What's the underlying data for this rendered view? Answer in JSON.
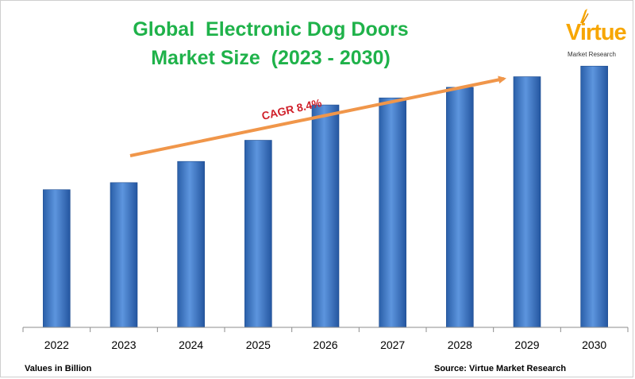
{
  "header": {
    "title_line_1": "Global  Electronic Dog Doors",
    "title_line_2": "Market Size  (2023 - 2030)"
  },
  "logo": {
    "brand": "Virtue",
    "tagline": "Market Research"
  },
  "footer": {
    "units_note": "Values in Billion",
    "source_note": "Source: Virtue Market Research"
  },
  "annotation": {
    "cagr_label": "CAGR 8.4%"
  },
  "colors": {
    "title": "#1fb24a",
    "bar": "#3c78c8",
    "arrow": "#f0964a",
    "cagr": "#d0202a",
    "logo": "#f7a600"
  },
  "chart_data": {
    "type": "bar",
    "categories": [
      "2022",
      "2023",
      "2024",
      "2025",
      "2026",
      "2027",
      "2028",
      "2029",
      "2030"
    ],
    "values": [
      3.9,
      4.1,
      4.7,
      5.3,
      6.3,
      6.5,
      6.8,
      7.1,
      7.4
    ],
    "ylim": [
      0,
      8.8
    ],
    "grid": false,
    "y_axis_labels_shown": false
  }
}
